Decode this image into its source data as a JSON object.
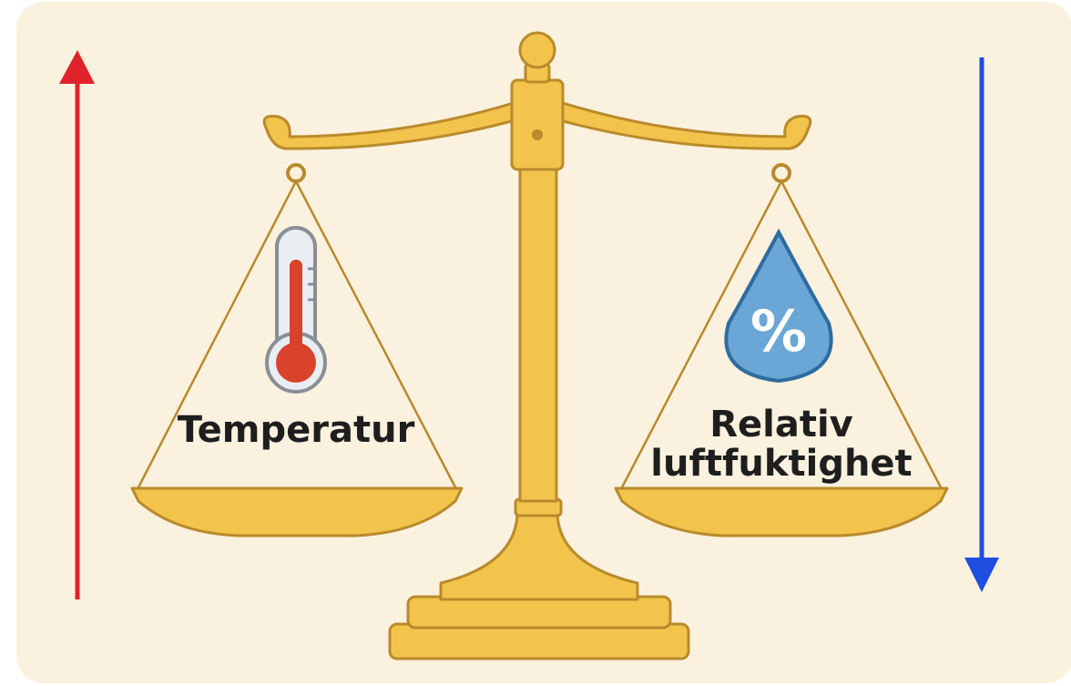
{
  "left_pan": {
    "label": "Temperatur"
  },
  "right_pan": {
    "icon_text": "%",
    "label_lines": [
      "Relativ",
      "luftfuktighet"
    ]
  }
}
